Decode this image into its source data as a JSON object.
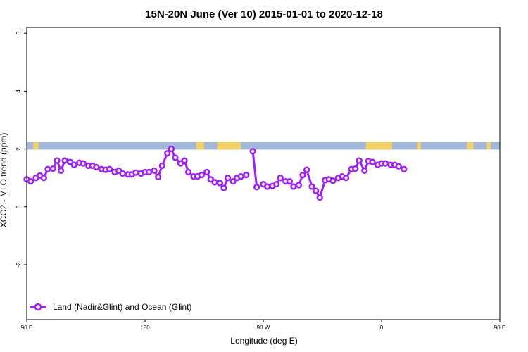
{
  "chart_data": {
    "type": "line",
    "title": "15N-20N June (Ver 10)   2015-01-01 to 2020-12-18",
    "xlabel": "Longitude (deg E)",
    "ylabel": "XCO2 - MLO trend (ppm)",
    "xlim": [
      90,
      450
    ],
    "ylim": [
      -3.9,
      6.2
    ],
    "x_ticks": [
      90,
      180,
      270,
      360,
      450,
      540
    ],
    "x_tick_labels": [
      "90 E",
      "180",
      "90 W",
      "0",
      "90 E",
      "180"
    ],
    "y_ticks": [
      -2,
      0,
      2,
      4,
      6
    ],
    "y_tick_labels": [
      "-2",
      "0",
      "2",
      "4",
      "6"
    ],
    "grid": false,
    "legend_position": "bottom-left",
    "series_color": "#a020f0",
    "land_color": "#f2d16b",
    "ocean_color": "#a3b8d9",
    "land_ocean_band": {
      "y_range": [
        1.98,
        2.25
      ],
      "land_segments": [
        [
          95,
          99
        ],
        [
          219,
          225
        ],
        [
          235,
          253
        ],
        [
          348,
          368
        ],
        [
          387,
          390
        ],
        [
          425,
          430
        ],
        [
          440,
          443
        ]
      ]
    },
    "series": [
      {
        "name": "Land (Nadir&Glint) and Ocean (Glint)",
        "segments": [
          [
            [
              90,
              0.95
            ],
            [
              93,
              0.88
            ],
            [
              97,
              1.0
            ],
            [
              100,
              1.08
            ],
            [
              103,
              1.0
            ],
            [
              106,
              1.3
            ],
            [
              110,
              1.32
            ],
            [
              113,
              1.6
            ],
            [
              116,
              1.25
            ],
            [
              119,
              1.6
            ],
            [
              123,
              1.55
            ],
            [
              126,
              1.45
            ],
            [
              130,
              1.52
            ],
            [
              133,
              1.5
            ],
            [
              137,
              1.42
            ],
            [
              140,
              1.42
            ],
            [
              143,
              1.37
            ],
            [
              147,
              1.3
            ],
            [
              150,
              1.28
            ],
            [
              153,
              1.3
            ],
            [
              157,
              1.2
            ],
            [
              160,
              1.25
            ],
            [
              163,
              1.15
            ],
            [
              167,
              1.12
            ],
            [
              170,
              1.12
            ],
            [
              173,
              1.18
            ],
            [
              177,
              1.15
            ],
            [
              180,
              1.2
            ],
            [
              183,
              1.2
            ],
            [
              187,
              1.25
            ],
            [
              190,
              1.03
            ],
            [
              193,
              1.42
            ],
            [
              197,
              1.85
            ],
            [
              200,
              2.0
            ],
            [
              203,
              1.7
            ],
            [
              207,
              1.5
            ],
            [
              210,
              1.6
            ],
            [
              213,
              1.2
            ],
            [
              217,
              1.05
            ],
            [
              220,
              1.05
            ],
            [
              223,
              1.1
            ],
            [
              227,
              1.2
            ],
            [
              230,
              0.95
            ],
            [
              233,
              0.85
            ],
            [
              237,
              0.82
            ],
            [
              240,
              0.65
            ],
            [
              243,
              1.0
            ],
            [
              247,
              0.88
            ],
            [
              250,
              1.0
            ],
            [
              253,
              1.05
            ],
            [
              257,
              1.1
            ]
          ],
          [
            [
              262,
              1.92
            ],
            [
              265,
              0.68
            ]
          ],
          [
            [
              270,
              0.78
            ],
            [
              273,
              0.7
            ],
            [
              277,
              0.72
            ],
            [
              280,
              0.78
            ],
            [
              283,
              1.0
            ],
            [
              287,
              0.88
            ],
            [
              290,
              0.88
            ],
            [
              293,
              0.7
            ],
            [
              297,
              0.75
            ],
            [
              300,
              1.1
            ],
            [
              303,
              1.28
            ],
            [
              307,
              0.7
            ],
            [
              310,
              0.55
            ],
            [
              313,
              0.32
            ],
            [
              317,
              0.92
            ],
            [
              320,
              0.95
            ],
            [
              323,
              0.9
            ],
            [
              327,
              1.0
            ],
            [
              330,
              1.05
            ],
            [
              333,
              1.0
            ],
            [
              337,
              1.3
            ],
            [
              340,
              1.32
            ],
            [
              343,
              1.6
            ],
            [
              347,
              1.25
            ],
            [
              350,
              1.58
            ],
            [
              353,
              1.55
            ],
            [
              357,
              1.45
            ],
            [
              360,
              1.5
            ],
            [
              363,
              1.5
            ],
            [
              367,
              1.45
            ],
            [
              370,
              1.45
            ],
            [
              373,
              1.4
            ],
            [
              377,
              1.3
            ]
          ]
        ]
      }
    ]
  }
}
